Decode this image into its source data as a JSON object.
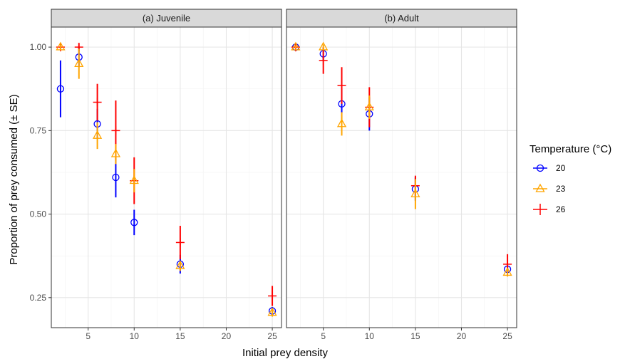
{
  "chart_data": {
    "type": "scatter",
    "xlabel": "Initial prey density",
    "ylabel": "Proportion of prey consumed (± SE)",
    "xlim": [
      1,
      26
    ],
    "ylim": [
      0.16,
      1.06
    ],
    "xticks": [
      5,
      10,
      15,
      20,
      25
    ],
    "yticks": [
      0.25,
      0.5,
      0.75,
      1.0
    ],
    "ytick_labels": [
      "0.25",
      "0.50",
      "0.75",
      "1.00"
    ],
    "grid": true,
    "legend": {
      "title": "Temperature (°C)",
      "placement": "right",
      "entries": [
        {
          "label": "20",
          "color": "#0000ff",
          "shape": "circle"
        },
        {
          "label": "23",
          "color": "#ffa500",
          "shape": "triangle"
        },
        {
          "label": "26",
          "color": "#ff0000",
          "shape": "plus"
        }
      ]
    },
    "panels": [
      {
        "title": "(a) Juvenile",
        "series": [
          {
            "name": "20",
            "color": "#0000ff",
            "shape": "circle",
            "x": [
              2,
              4,
              6,
              8,
              10,
              15,
              25
            ],
            "y": [
              0.875,
              0.97,
              0.77,
              0.61,
              0.475,
              0.35,
              0.21
            ],
            "se": [
              0.085,
              0.03,
              0.045,
              0.06,
              0.038,
              0.028,
              0.012
            ]
          },
          {
            "name": "23",
            "color": "#ffa500",
            "shape": "triangle",
            "x": [
              2,
              4,
              6,
              8,
              10,
              15,
              25
            ],
            "y": [
              1.0,
              0.95,
              0.735,
              0.68,
              0.6,
              0.345,
              0.205
            ],
            "se": [
              0.008,
              0.045,
              0.04,
              0.03,
              0.035,
              0.015,
              0.012
            ]
          },
          {
            "name": "26",
            "color": "#ff0000",
            "shape": "plus",
            "x": [
              2,
              4,
              6,
              8,
              10,
              15,
              25
            ],
            "y": [
              1.0,
              1.0,
              0.835,
              0.75,
              0.6,
              0.415,
              0.255
            ],
            "se": [
              0.005,
              0.012,
              0.055,
              0.09,
              0.07,
              0.05,
              0.03
            ]
          }
        ]
      },
      {
        "title": "(b) Adult",
        "series": [
          {
            "name": "20",
            "color": "#0000ff",
            "shape": "circle",
            "x": [
              2,
              5,
              7,
              10,
              15,
              25
            ],
            "y": [
              1.0,
              0.98,
              0.83,
              0.8,
              0.575,
              0.335
            ],
            "se": [
              0.005,
              0.018,
              0.045,
              0.05,
              0.035,
              0.01
            ]
          },
          {
            "name": "23",
            "color": "#ffa500",
            "shape": "triangle",
            "x": [
              2,
              5,
              7,
              10,
              15,
              25
            ],
            "y": [
              1.0,
              1.0,
              0.77,
              0.82,
              0.56,
              0.325
            ],
            "se": [
              0.005,
              0.008,
              0.035,
              0.035,
              0.045,
              0.012
            ]
          },
          {
            "name": "26",
            "color": "#ff0000",
            "shape": "plus",
            "x": [
              2,
              5,
              7,
              10,
              15,
              25
            ],
            "y": [
              1.0,
              0.96,
              0.885,
              0.82,
              0.585,
              0.35
            ],
            "se": [
              0.005,
              0.04,
              0.055,
              0.06,
              0.03,
              0.03
            ]
          }
        ]
      }
    ]
  }
}
